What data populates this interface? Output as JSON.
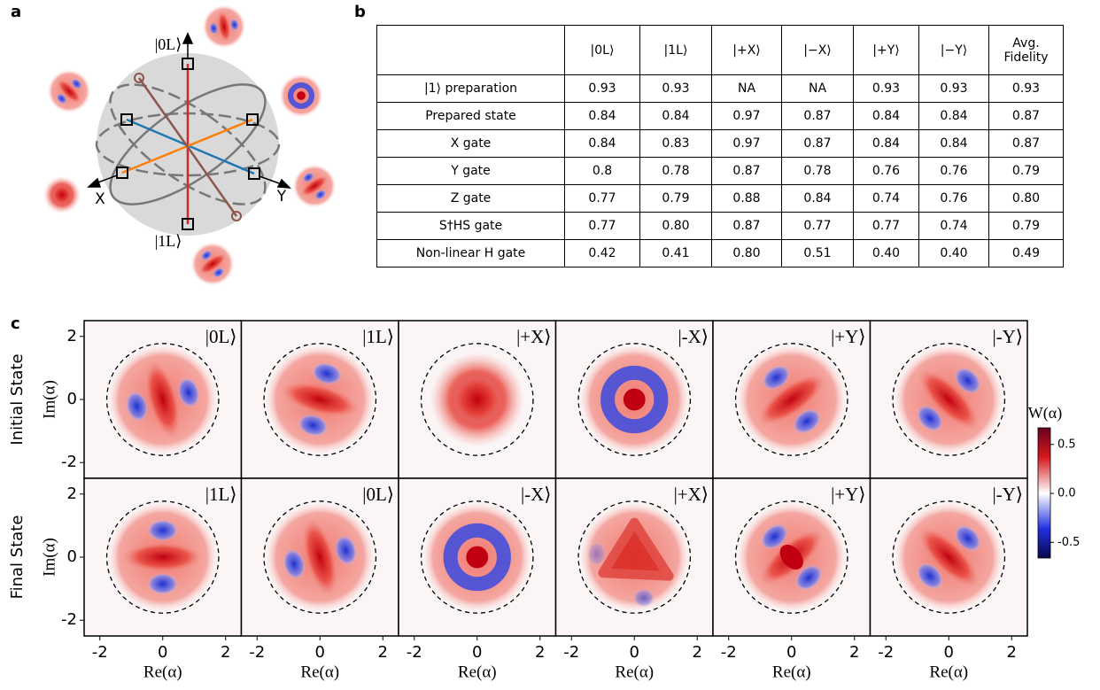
{
  "panel_a": {
    "label": "a",
    "state_labels": [
      "|0L⟩",
      "|1L⟩"
    ],
    "axis_labels": [
      "X",
      "Y"
    ]
  },
  "panel_b": {
    "label": "b",
    "header": [
      "|0L⟩",
      "|1L⟩",
      "|+X⟩",
      "|−X⟩",
      "|+Y⟩",
      "|−Y⟩",
      "Avg. Fidelity"
    ],
    "rows": [
      {
        "label": "|1⟩ preparation",
        "values": [
          "0.93",
          "0.93",
          "NA",
          "NA",
          "0.93",
          "0.93",
          "0.93"
        ]
      },
      {
        "label": "Prepared state",
        "values": [
          "0.84",
          "0.84",
          "0.97",
          "0.87",
          "0.84",
          "0.84",
          "0.87"
        ]
      },
      {
        "label": "X gate",
        "values": [
          "0.84",
          "0.83",
          "0.97",
          "0.87",
          "0.84",
          "0.84",
          "0.87"
        ]
      },
      {
        "label": "Y gate",
        "values": [
          "0.8",
          "0.78",
          "0.87",
          "0.78",
          "0.76",
          "0.76",
          "0.79"
        ]
      },
      {
        "label": "Z gate",
        "values": [
          "0.77",
          "0.79",
          "0.88",
          "0.84",
          "0.74",
          "0.76",
          "0.80"
        ]
      },
      {
        "label": "S†HS gate",
        "values": [
          "0.77",
          "0.80",
          "0.87",
          "0.77",
          "0.77",
          "0.74",
          "0.79"
        ]
      },
      {
        "label": "Non-linear H gate",
        "values": [
          "0.42",
          "0.41",
          "0.80",
          "0.51",
          "0.40",
          "0.40",
          "0.49"
        ]
      }
    ]
  },
  "panel_c": {
    "label": "c",
    "row_labels": [
      "Initial State",
      "Final State"
    ],
    "states": [
      [
        "|0L⟩",
        "|1L⟩",
        "|+X⟩",
        "|-X⟩",
        "|+Y⟩",
        "|-Y⟩"
      ],
      [
        "|1L⟩",
        "|0L⟩",
        "|-X⟩",
        "|+X⟩",
        "|+Y⟩",
        "|-Y⟩"
      ]
    ],
    "x_label": "Re(α)",
    "y_label": "Im(α)",
    "xlim": [
      -2.5,
      2.5
    ],
    "ylim": [
      -2.5,
      2.5
    ],
    "xticks": [
      -2,
      0,
      2
    ],
    "yticks": [
      -2,
      0,
      2
    ],
    "colorbar": {
      "title": "W(α)",
      "lim": [
        -0.66,
        0.67
      ],
      "ticks": [
        0.5,
        {
          "value": 0,
          "label": "0.0"
        },
        -0.5
      ]
    }
  }
}
